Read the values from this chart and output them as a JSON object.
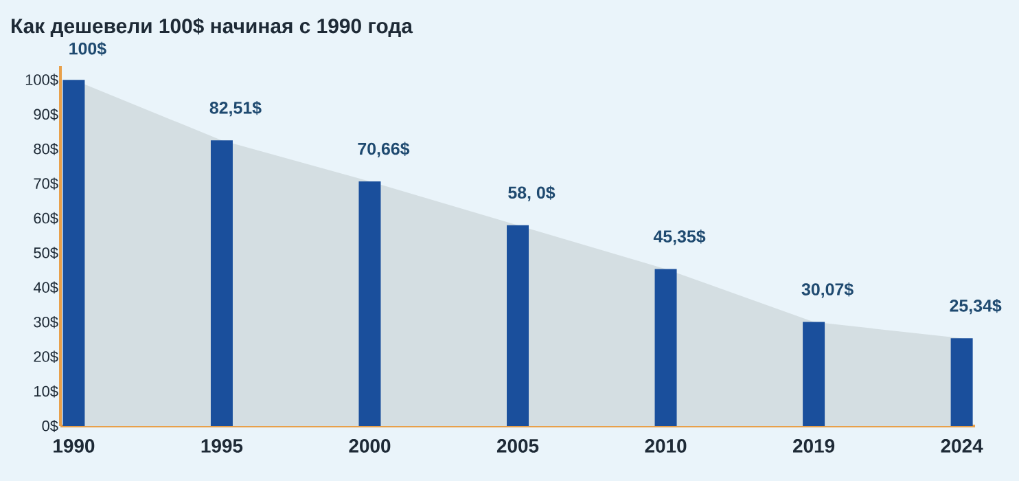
{
  "chart_data": {
    "type": "bar",
    "title": "Как дешевели 100$ начиная с 1990 года",
    "categories": [
      "1990",
      "1995",
      "2000",
      "2005",
      "2010",
      "2019",
      "2024"
    ],
    "series": [
      {
        "type": "area",
        "color": "#d4dee2",
        "values": [
          100,
          82.51,
          70.66,
          58.0,
          45.35,
          30.07,
          25.34
        ]
      },
      {
        "color": "#1a4f9c",
        "values": [
          100,
          82.51,
          70.66,
          58.0,
          45.35,
          30.07,
          25.34
        ],
        "value_labels": [
          "100$",
          "82,51$",
          "70,66$",
          "58,  0$",
          "45,35$",
          "30,07$",
          "25,34$"
        ]
      }
    ],
    "ylim": [
      0,
      104
    ],
    "yticks": [
      {
        "value": 0,
        "label": "0$"
      },
      {
        "value": 10,
        "label": "10$"
      },
      {
        "value": 20,
        "label": "20$"
      },
      {
        "value": 30,
        "label": "30$"
      },
      {
        "value": 40,
        "label": "40$"
      },
      {
        "value": 50,
        "label": "50$"
      },
      {
        "value": 60,
        "label": "60$"
      },
      {
        "value": 70,
        "label": "70$"
      },
      {
        "value": 80,
        "label": "80$"
      },
      {
        "value": 90,
        "label": "90$"
      },
      {
        "value": 100,
        "label": "100$"
      }
    ]
  }
}
